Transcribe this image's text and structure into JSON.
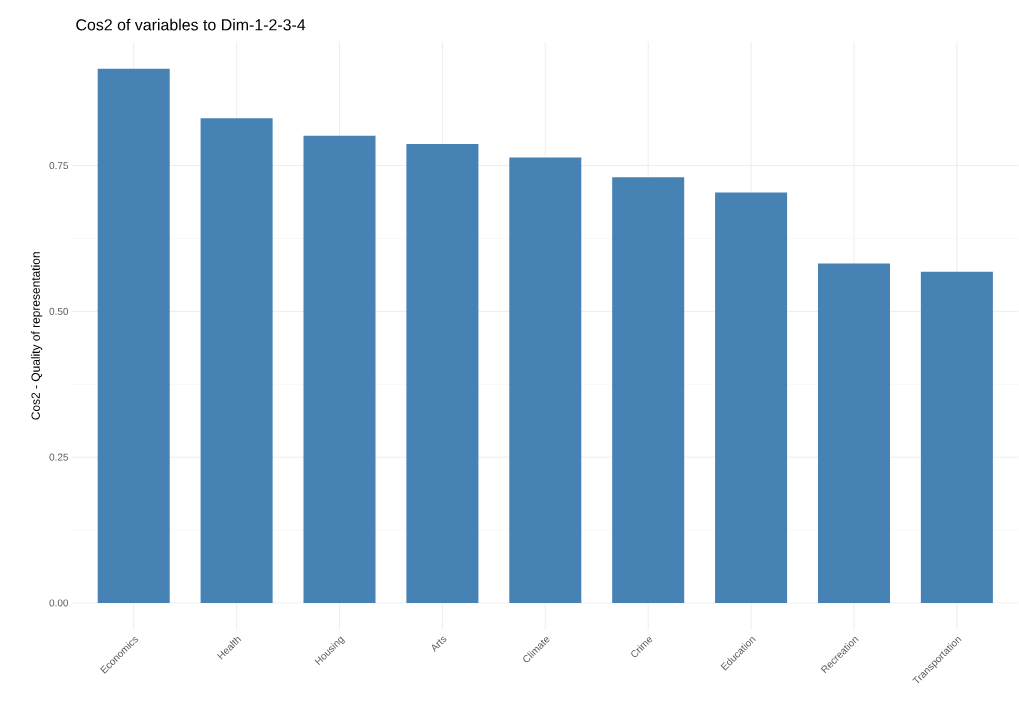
{
  "chart_data": {
    "type": "bar",
    "title": "Cos2 of variables to Dim-1-2-3-4",
    "ylabel": "Cos2 - Quality of representation",
    "categories": [
      "Economics",
      "Health",
      "Housing",
      "Arts",
      "Climate",
      "Crime",
      "Education",
      "Recreation",
      "Transportation"
    ],
    "values": [
      0.916,
      0.831,
      0.801,
      0.787,
      0.764,
      0.73,
      0.704,
      0.582,
      0.568
    ],
    "color": "#4682b4",
    "ylim": [
      -0.046,
      0.962
    ],
    "yticks": [
      {
        "value": 0,
        "label": "0.00"
      },
      {
        "value": 0.25,
        "label": "0.25"
      },
      {
        "value": 0.5,
        "label": "0.50"
      },
      {
        "value": 0.75,
        "label": "0.75"
      }
    ],
    "grid": true
  }
}
